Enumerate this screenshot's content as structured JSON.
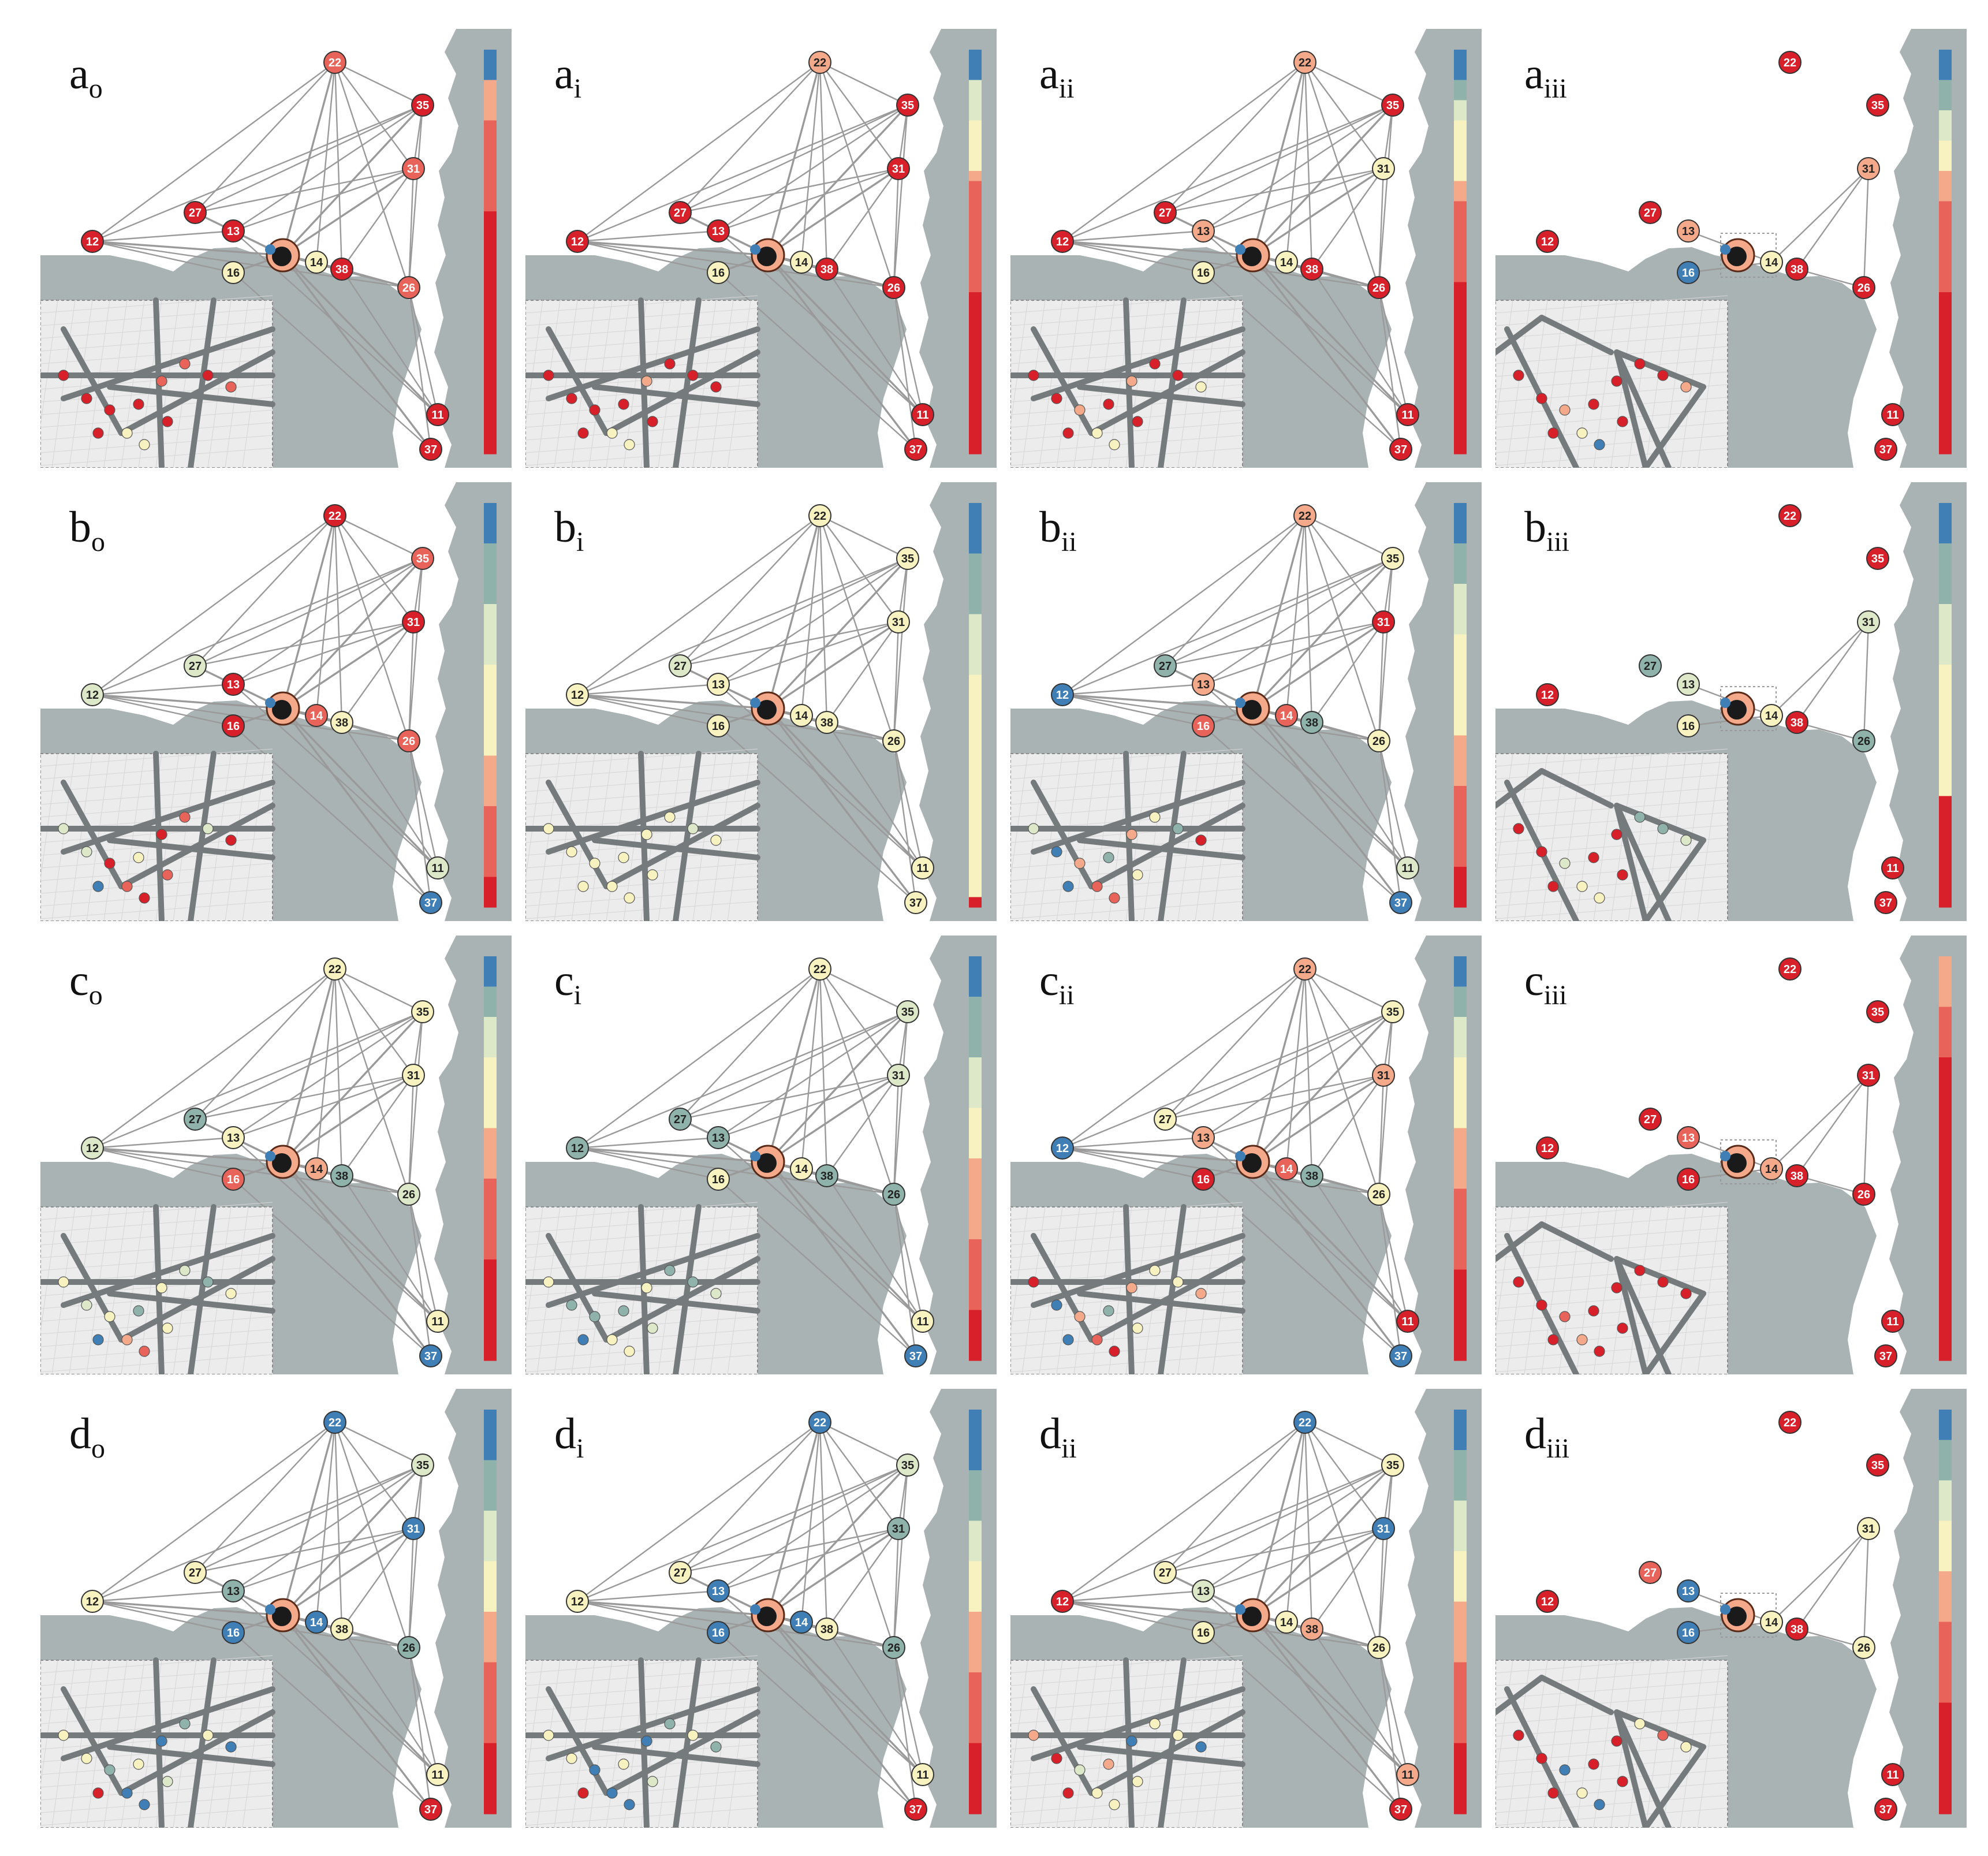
{
  "figure": {
    "rows": [
      {
        "letter": "a",
        "panels": [
          {
            "sub": "o",
            "colors": {
              "22": "r3",
              "35": "r4",
              "31": "r3",
              "27": "r4",
              "13": "r4",
              "12": "r4",
              "16": "y",
              "14": "y",
              "38": "r4",
              "26": "r3",
              "11": "r4",
              "37": "r4"
            }
          },
          {
            "sub": "i",
            "colors": {
              "22": "r2",
              "35": "r4",
              "31": "r4",
              "27": "r4",
              "13": "r4",
              "12": "r4",
              "16": "y",
              "14": "y",
              "38": "r4",
              "26": "r4",
              "11": "r4",
              "37": "r4"
            }
          },
          {
            "sub": "ii",
            "colors": {
              "22": "r2",
              "35": "r4",
              "31": "y",
              "27": "r4",
              "13": "r2",
              "12": "r4",
              "16": "y",
              "14": "y",
              "38": "r4",
              "26": "r4",
              "11": "r4",
              "37": "r4"
            }
          },
          {
            "sub": "iii",
            "colors": {
              "22": "r4",
              "35": "r4",
              "31": "r2",
              "27": "r4",
              "13": "r2",
              "12": "r4",
              "16": "b",
              "14": "y",
              "38": "r4",
              "26": "r4",
              "11": "r4",
              "37": "r4"
            }
          }
        ]
      },
      {
        "letter": "b",
        "panels": [
          {
            "sub": "o",
            "colors": {
              "22": "r4",
              "35": "r3",
              "31": "r4",
              "27": "gy",
              "13": "r4",
              "12": "gy",
              "16": "r4",
              "14": "r3",
              "38": "y",
              "26": "r3",
              "11": "gy",
              "37": "b"
            }
          },
          {
            "sub": "i",
            "colors": {
              "22": "y",
              "35": "y",
              "31": "y",
              "27": "gy",
              "13": "y",
              "12": "y",
              "16": "y",
              "14": "y",
              "38": "y",
              "26": "y",
              "11": "y",
              "37": "y"
            }
          },
          {
            "sub": "ii",
            "colors": {
              "22": "r2",
              "35": "y",
              "31": "r4",
              "27": "g",
              "13": "r2",
              "12": "b",
              "16": "r3",
              "14": "r3",
              "38": "g",
              "26": "y",
              "11": "gy",
              "37": "b"
            }
          },
          {
            "sub": "iii",
            "colors": {
              "22": "r4",
              "35": "r4",
              "31": "gy",
              "27": "g",
              "13": "gy",
              "12": "r4",
              "16": "y",
              "14": "y",
              "38": "r4",
              "26": "g",
              "11": "r4",
              "37": "r4"
            }
          }
        ]
      },
      {
        "letter": "c",
        "panels": [
          {
            "sub": "o",
            "colors": {
              "22": "y",
              "35": "y",
              "31": "y",
              "27": "g",
              "13": "y",
              "12": "gy",
              "16": "r3",
              "14": "r2",
              "38": "g",
              "26": "gy",
              "11": "y",
              "37": "b"
            }
          },
          {
            "sub": "i",
            "colors": {
              "22": "y",
              "35": "gy",
              "31": "gy",
              "27": "g",
              "13": "g",
              "12": "g",
              "16": "y",
              "14": "y",
              "38": "g",
              "26": "g",
              "11": "y",
              "37": "b"
            }
          },
          {
            "sub": "ii",
            "colors": {
              "22": "r2",
              "35": "y",
              "31": "r2",
              "27": "y",
              "13": "r2",
              "12": "b",
              "16": "r4",
              "14": "r3",
              "38": "g",
              "26": "y",
              "11": "r4",
              "37": "b"
            }
          },
          {
            "sub": "iii",
            "colors": {
              "22": "r4",
              "35": "r4",
              "31": "r4",
              "27": "r4",
              "13": "r3",
              "12": "r4",
              "16": "r4",
              "14": "r2",
              "38": "r4",
              "26": "r4",
              "11": "r4",
              "37": "r4"
            }
          }
        ]
      },
      {
        "letter": "d",
        "panels": [
          {
            "sub": "o",
            "colors": {
              "22": "b",
              "35": "gy",
              "31": "b",
              "27": "y",
              "13": "g",
              "12": "y",
              "16": "b",
              "14": "b",
              "38": "y",
              "26": "g",
              "11": "y",
              "37": "r4"
            }
          },
          {
            "sub": "i",
            "colors": {
              "22": "b",
              "35": "gy",
              "31": "g",
              "27": "y",
              "13": "b",
              "12": "y",
              "16": "b",
              "14": "b",
              "38": "y",
              "26": "g",
              "11": "y",
              "37": "r4"
            }
          },
          {
            "sub": "ii",
            "colors": {
              "22": "b",
              "35": "y",
              "31": "b",
              "27": "y",
              "13": "gy",
              "12": "r4",
              "16": "y",
              "14": "y",
              "38": "r2",
              "26": "y",
              "11": "r2",
              "37": "r4"
            }
          },
          {
            "sub": "iii",
            "colors": {
              "22": "r4",
              "35": "r4",
              "31": "y",
              "27": "r3",
              "13": "b",
              "12": "r4",
              "16": "b",
              "14": "y",
              "38": "r4",
              "26": "y",
              "11": "r4",
              "37": "r4"
            }
          }
        ]
      }
    ],
    "palette": {
      "b": "#3f7fb5",
      "g": "#8fb3ab",
      "gy": "#dde8c8",
      "y": "#f7f2bf",
      "r2": "#f3a98a",
      "r3": "#e8645a",
      "r4": "#d8202a",
      "land": "#aab3b4",
      "edge": "#9a9a9a",
      "inset_bg": "#ececec",
      "inset_road": "#757b7c"
    },
    "legend_bars": [
      [
        "b",
        "b",
        "b",
        "r2",
        "r2",
        "r2",
        "r2",
        "r3",
        "r3",
        "r3",
        "r3",
        "r3",
        "r3",
        "r3",
        "r3",
        "r3",
        "r4",
        "r4",
        "r4",
        "r4",
        "r4",
        "r4",
        "r4",
        "r4",
        "r4",
        "r4",
        "r4",
        "r4",
        "r4",
        "r4",
        "r4",
        "r4",
        "r4",
        "r4",
        "r4",
        "r4",
        "r4",
        "r4",
        "r4",
        "r4"
      ],
      [
        "b",
        "b",
        "b",
        "gy",
        "gy",
        "gy",
        "gy",
        "y",
        "y",
        "y",
        "y",
        "y",
        "r2",
        "r3",
        "r3",
        "r3",
        "r3",
        "r3",
        "r3",
        "r3",
        "r3",
        "r3",
        "r3",
        "r3",
        "r4",
        "r4",
        "r4",
        "r4",
        "r4",
        "r4",
        "r4",
        "r4",
        "r4",
        "r4",
        "r4",
        "r4",
        "r4",
        "r4",
        "r4",
        "r4"
      ],
      [
        "b",
        "b",
        "b",
        "g",
        "g",
        "gy",
        "gy",
        "y",
        "y",
        "y",
        "y",
        "y",
        "y",
        "r2",
        "r2",
        "r3",
        "r3",
        "r3",
        "r3",
        "r3",
        "r3",
        "r3",
        "r3",
        "r4",
        "r4",
        "r4",
        "r4",
        "r4",
        "r4",
        "r4",
        "r4",
        "r4",
        "r4",
        "r4",
        "r4",
        "r4",
        "r4",
        "r4",
        "r4",
        "r4"
      ],
      [
        "b",
        "b",
        "b",
        "g",
        "g",
        "g",
        "gy",
        "gy",
        "gy",
        "y",
        "y",
        "y",
        "r2",
        "r2",
        "r2",
        "r3",
        "r3",
        "r3",
        "r3",
        "r3",
        "r3",
        "r3",
        "r3",
        "r3",
        "r4",
        "r4",
        "r4",
        "r4",
        "r4",
        "r4",
        "r4",
        "r4",
        "r4",
        "r4",
        "r4",
        "r4",
        "r4",
        "r4",
        "r4",
        "r4"
      ],
      [
        "b",
        "b",
        "b",
        "b",
        "g",
        "g",
        "g",
        "g",
        "g",
        "g",
        "gy",
        "gy",
        "gy",
        "gy",
        "gy",
        "gy",
        "y",
        "y",
        "y",
        "y",
        "y",
        "y",
        "y",
        "y",
        "y",
        "r2",
        "r2",
        "r2",
        "r2",
        "r2",
        "r3",
        "r3",
        "r3",
        "r3",
        "r3",
        "r3",
        "r3",
        "r4",
        "r4",
        "r4"
      ],
      [
        "b",
        "b",
        "b",
        "b",
        "b",
        "g",
        "g",
        "g",
        "g",
        "g",
        "g",
        "gy",
        "gy",
        "gy",
        "gy",
        "gy",
        "gy",
        "y",
        "y",
        "y",
        "y",
        "y",
        "y",
        "y",
        "y",
        "y",
        "y",
        "y",
        "y",
        "y",
        "y",
        "y",
        "y",
        "y",
        "y",
        "y",
        "y",
        "y",
        "y",
        "r4"
      ],
      [
        "b",
        "b",
        "b",
        "b",
        "g",
        "g",
        "g",
        "g",
        "gy",
        "gy",
        "gy",
        "gy",
        "gy",
        "y",
        "y",
        "y",
        "y",
        "y",
        "y",
        "y",
        "y",
        "y",
        "y",
        "r2",
        "r2",
        "r2",
        "r2",
        "r2",
        "r3",
        "r3",
        "r3",
        "r3",
        "r3",
        "r3",
        "r3",
        "r3",
        "r4",
        "r4",
        "r4",
        "r4"
      ],
      [
        "b",
        "b",
        "b",
        "b",
        "g",
        "g",
        "g",
        "g",
        "g",
        "g",
        "gy",
        "gy",
        "gy",
        "gy",
        "gy",
        "gy",
        "y",
        "y",
        "y",
        "y",
        "y",
        "y",
        "y",
        "y",
        "y",
        "y",
        "y",
        "y",
        "y",
        "r4",
        "r4",
        "r4",
        "r4",
        "r4",
        "r4",
        "r4",
        "r4",
        "r4",
        "r4",
        "r4"
      ],
      [
        "b",
        "b",
        "b",
        "g",
        "g",
        "g",
        "gy",
        "gy",
        "gy",
        "gy",
        "y",
        "y",
        "y",
        "y",
        "y",
        "y",
        "y",
        "r2",
        "r2",
        "r2",
        "r2",
        "r2",
        "r3",
        "r3",
        "r3",
        "r3",
        "r3",
        "r3",
        "r3",
        "r3",
        "r4",
        "r4",
        "r4",
        "r4",
        "r4",
        "r4",
        "r4",
        "r4",
        "r4",
        "r4"
      ],
      [
        "b",
        "b",
        "b",
        "b",
        "g",
        "g",
        "g",
        "g",
        "g",
        "g",
        "gy",
        "gy",
        "gy",
        "gy",
        "gy",
        "y",
        "y",
        "y",
        "y",
        "y",
        "r2",
        "r2",
        "r2",
        "r2",
        "r2",
        "r2",
        "r2",
        "r2",
        "r3",
        "r3",
        "r3",
        "r3",
        "r3",
        "r3",
        "r3",
        "r4",
        "r4",
        "r4",
        "r4",
        "r4"
      ],
      [
        "b",
        "b",
        "b",
        "g",
        "g",
        "g",
        "gy",
        "gy",
        "gy",
        "gy",
        "y",
        "y",
        "y",
        "y",
        "y",
        "y",
        "y",
        "r2",
        "r2",
        "r2",
        "r2",
        "r2",
        "r2",
        "r3",
        "r3",
        "r3",
        "r3",
        "r3",
        "r3",
        "r3",
        "r3",
        "r4",
        "r4",
        "r4",
        "r4",
        "r4",
        "r4",
        "r4",
        "r4",
        "r4"
      ],
      [
        "r2",
        "r2",
        "r2",
        "r2",
        "r2",
        "r3",
        "r3",
        "r3",
        "r3",
        "r3",
        "r4",
        "r4",
        "r4",
        "r4",
        "r4",
        "r4",
        "r4",
        "r4",
        "r4",
        "r4",
        "r4",
        "r4",
        "r4",
        "r4",
        "r4",
        "r4",
        "r4",
        "r4",
        "r4",
        "r4",
        "r4",
        "r4",
        "r4",
        "r4",
        "r4",
        "r4",
        "r4",
        "r4",
        "r4",
        "r4"
      ],
      [
        "b",
        "b",
        "b",
        "b",
        "b",
        "g",
        "g",
        "g",
        "g",
        "g",
        "gy",
        "gy",
        "gy",
        "gy",
        "gy",
        "y",
        "y",
        "y",
        "y",
        "y",
        "r2",
        "r2",
        "r2",
        "r2",
        "r2",
        "r3",
        "r3",
        "r3",
        "r3",
        "r3",
        "r3",
        "r3",
        "r3",
        "r4",
        "r4",
        "r4",
        "r4",
        "r4",
        "r4",
        "r4"
      ],
      [
        "b",
        "b",
        "b",
        "b",
        "b",
        "b",
        "g",
        "g",
        "g",
        "g",
        "g",
        "gy",
        "gy",
        "gy",
        "gy",
        "y",
        "y",
        "y",
        "y",
        "y",
        "r2",
        "r2",
        "r2",
        "r2",
        "r2",
        "r2",
        "r3",
        "r3",
        "r3",
        "r3",
        "r3",
        "r3",
        "r3",
        "r4",
        "r4",
        "r4",
        "r4",
        "r4",
        "r4",
        "r4"
      ],
      [
        "b",
        "b",
        "b",
        "b",
        "g",
        "g",
        "g",
        "g",
        "g",
        "gy",
        "gy",
        "gy",
        "gy",
        "gy",
        "y",
        "y",
        "y",
        "y",
        "y",
        "r2",
        "r2",
        "r2",
        "r2",
        "r2",
        "r2",
        "r3",
        "r3",
        "r3",
        "r3",
        "r3",
        "r3",
        "r3",
        "r3",
        "r4",
        "r4",
        "r4",
        "r4",
        "r4",
        "r4",
        "r4"
      ],
      [
        "b",
        "b",
        "b",
        "g",
        "g",
        "g",
        "g",
        "gy",
        "gy",
        "gy",
        "gy",
        "y",
        "y",
        "y",
        "y",
        "y",
        "r2",
        "r2",
        "r2",
        "r2",
        "r2",
        "r3",
        "r3",
        "r3",
        "r3",
        "r3",
        "r3",
        "r3",
        "r3",
        "r4",
        "r4",
        "r4",
        "r4",
        "r4",
        "r4",
        "r4",
        "r4",
        "r4",
        "r4",
        "r4"
      ]
    ]
  }
}
